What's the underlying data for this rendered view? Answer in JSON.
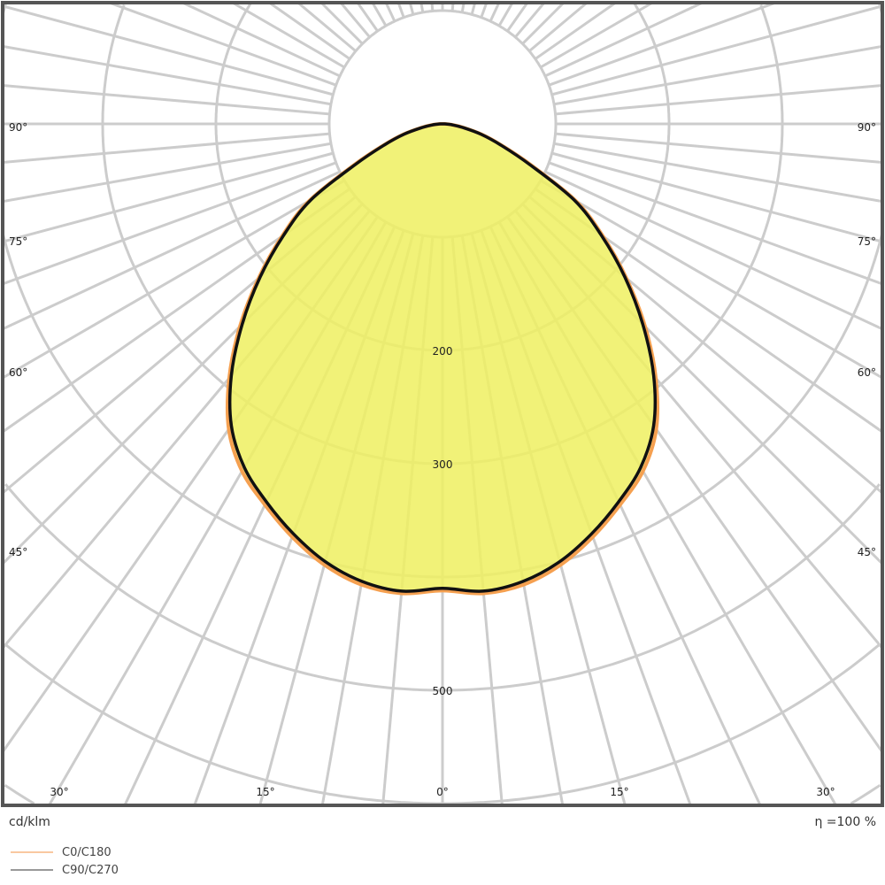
{
  "chart_data": {
    "type": "polar",
    "unit_label": "cd/klm",
    "efficiency_label": "η =100 %",
    "radial_tick_labels": [
      {
        "value": 200,
        "text": "200"
      },
      {
        "value": 300,
        "text": "300"
      },
      {
        "value": 500,
        "text": "500"
      }
    ],
    "rings": [
      100,
      200,
      300,
      400,
      500,
      600,
      700
    ],
    "spoke_step_deg": 5,
    "angle_labels": [
      "90°",
      "75°",
      "60°",
      "45°",
      "30°",
      "15°",
      "0°"
    ],
    "grid": true,
    "legend_placement": "bottom-left",
    "colors": {
      "fill": "#eef060",
      "C0/C180": "#f5a050",
      "C90/C270": "#111111",
      "grid": "#cccccc",
      "frame": "#555555"
    },
    "angles_deg": [
      0,
      5,
      10,
      15,
      20,
      25,
      30,
      35,
      40,
      45,
      50,
      55,
      60,
      65,
      70,
      75,
      80,
      85,
      90
    ],
    "series": [
      {
        "name": "C0/C180",
        "values": [
          412,
          416,
          413,
          403,
          388,
          371,
          354,
          329,
          293,
          253,
          212,
          173,
          136,
          87,
          56,
          36,
          19,
          8,
          2
        ]
      },
      {
        "name": "C90/C270",
        "values": [
          410,
          414,
          410,
          400,
          385,
          368,
          350,
          325,
          290,
          250,
          210,
          171,
          134,
          85,
          55,
          35,
          18,
          8,
          2
        ]
      }
    ]
  }
}
